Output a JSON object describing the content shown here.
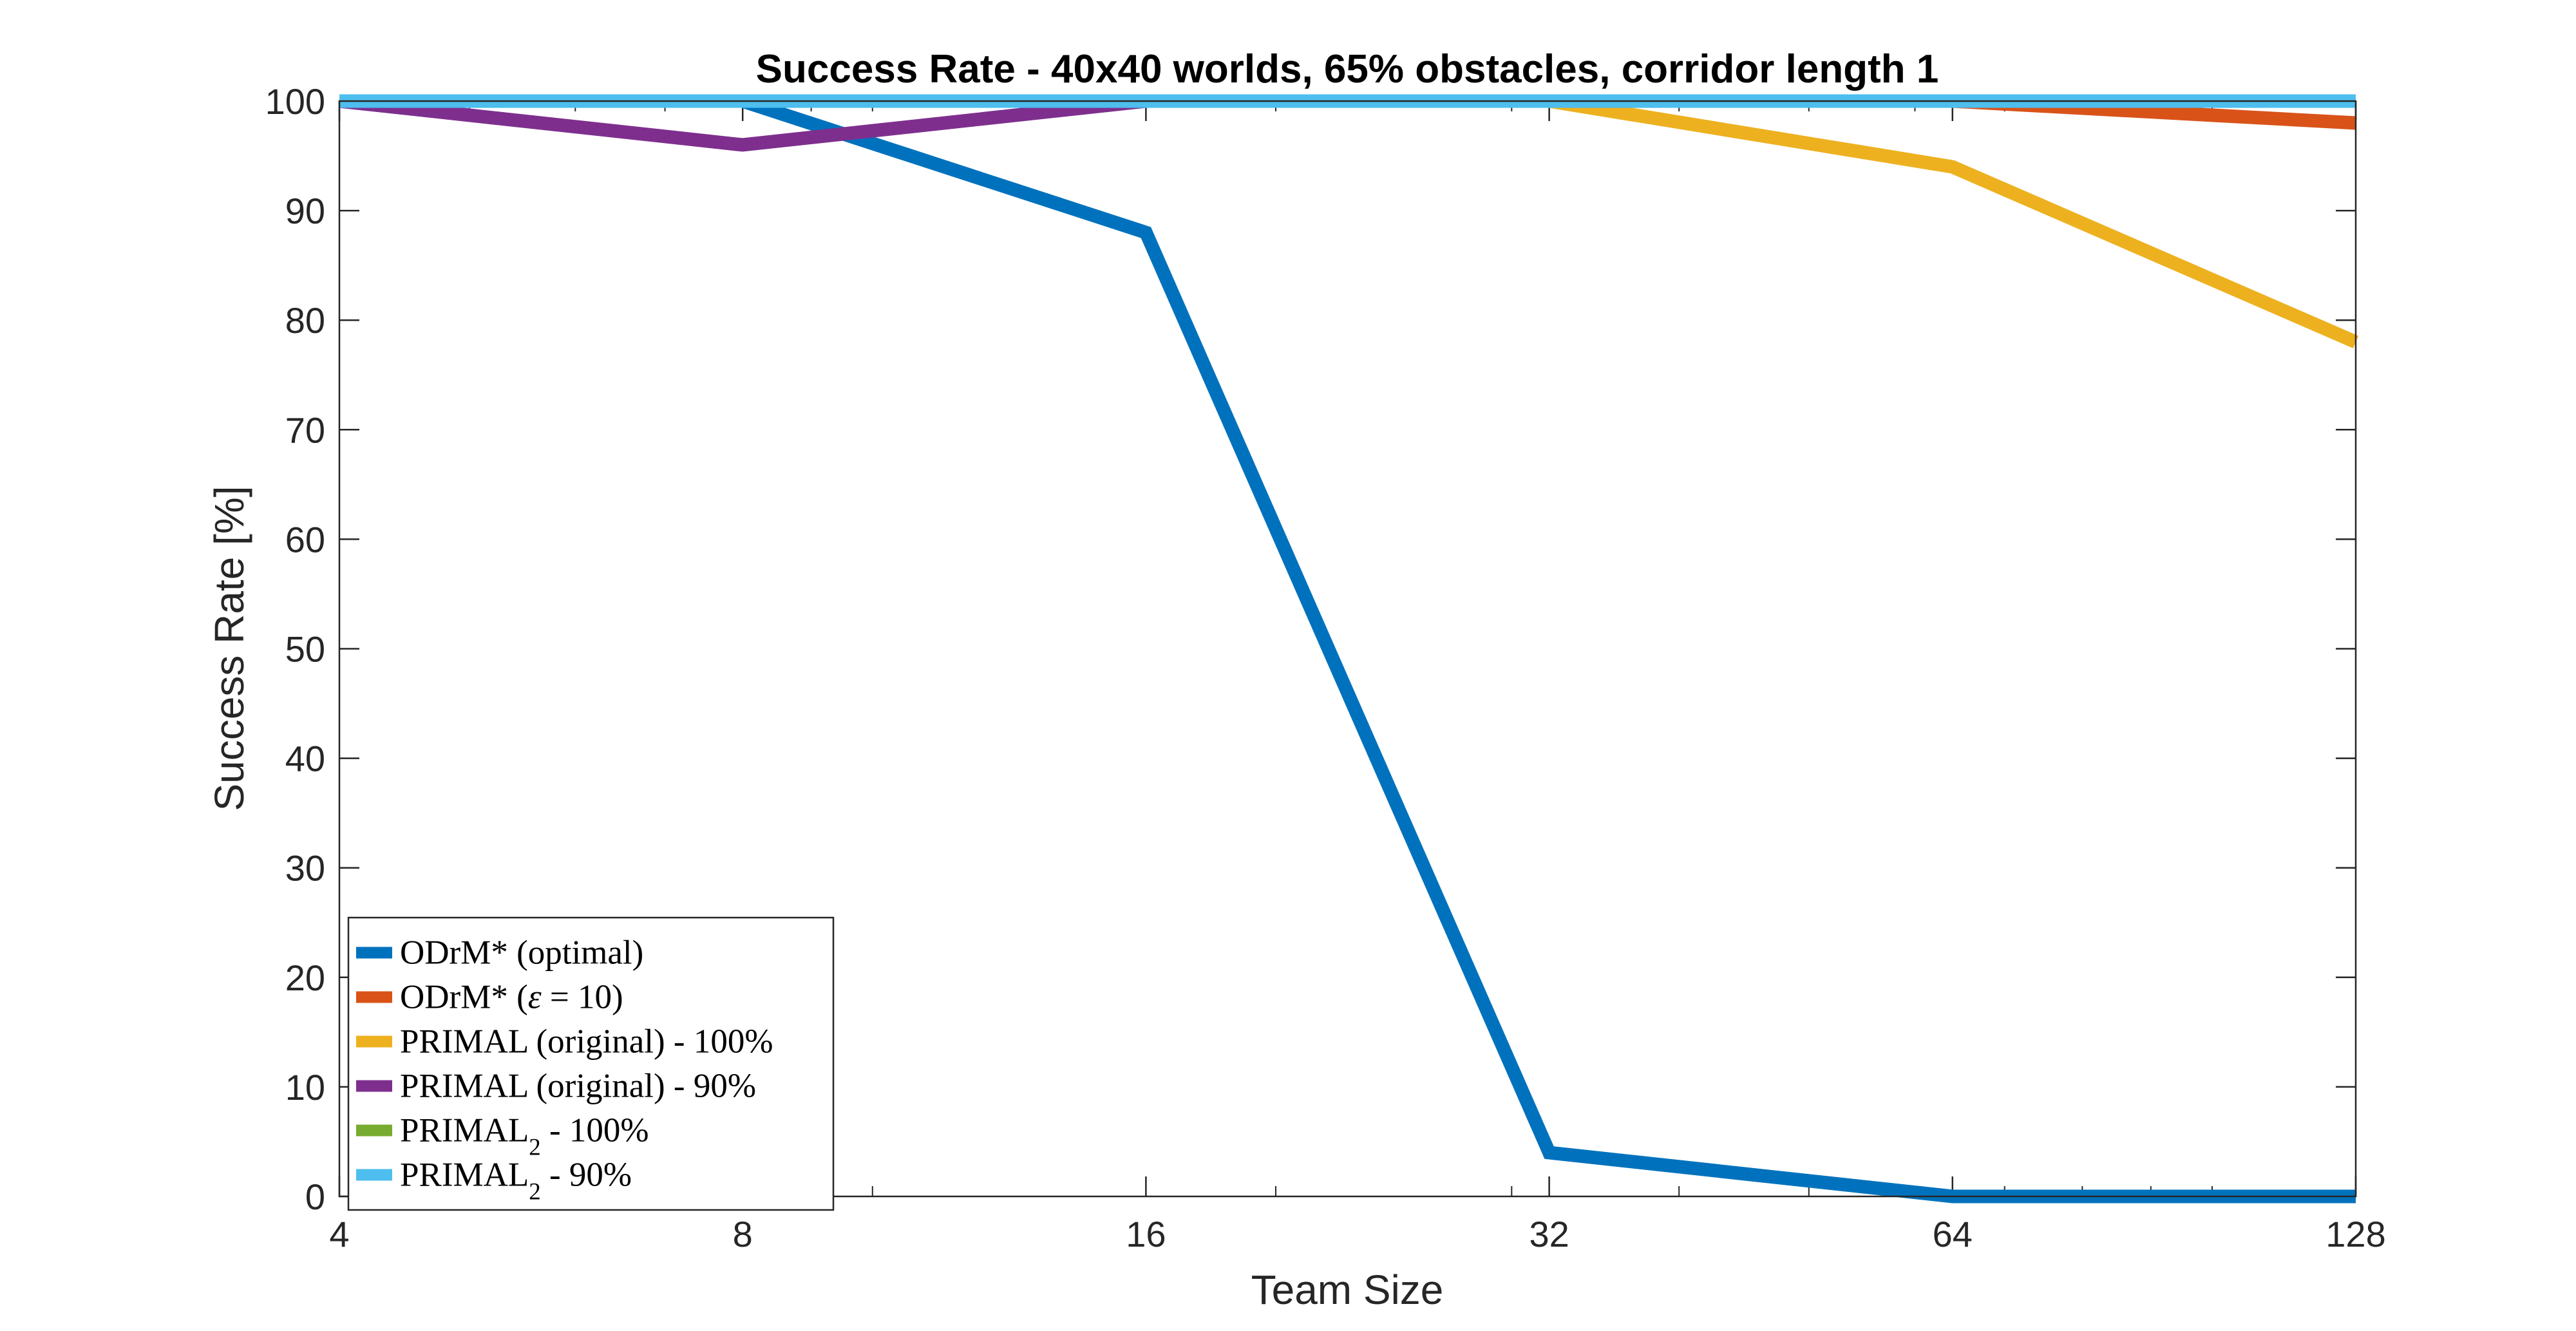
{
  "chart_data": {
    "type": "line",
    "title": "Success Rate - 40x40 worlds, 65% obstacles, corridor length 1",
    "xlabel": "Team Size",
    "ylabel": "Success Rate [%]",
    "x_scale": "log2",
    "x": [
      4,
      8,
      16,
      32,
      64,
      128
    ],
    "x_tick_labels": [
      "4",
      "8",
      "16",
      "32",
      "64",
      "128"
    ],
    "ylim": [
      0,
      100
    ],
    "y_ticks": [
      0,
      10,
      20,
      30,
      40,
      50,
      60,
      70,
      80,
      90,
      100
    ],
    "grid": false,
    "legend_position": "bottom-left",
    "series": [
      {
        "name": "ODrM* (optimal)",
        "legend_parts": [
          {
            "t": "ODrM* (optimal)"
          }
        ],
        "color": "#0072BD",
        "values": [
          100,
          100,
          88,
          4,
          0,
          0
        ]
      },
      {
        "name": "ODrM* (ε = 10)",
        "legend_parts": [
          {
            "t": "ODrM* ("
          },
          {
            "t": "ε",
            "italic": true
          },
          {
            "t": " = 10)"
          }
        ],
        "color": "#D95319",
        "values": [
          100,
          100,
          100,
          100,
          100,
          98
        ]
      },
      {
        "name": "PRIMAL (original) - 100%",
        "legend_parts": [
          {
            "t": "PRIMAL (original) - 100%"
          }
        ],
        "color": "#EDB120",
        "values": [
          100,
          100,
          100,
          100,
          94,
          78
        ]
      },
      {
        "name": "PRIMAL (original) - 90%",
        "legend_parts": [
          {
            "t": "PRIMAL (original) - 90%"
          }
        ],
        "color": "#7E2F8E",
        "values": [
          100,
          96,
          100,
          100,
          100,
          100
        ]
      },
      {
        "name": "PRIMAL2 - 100%",
        "legend_parts": [
          {
            "t": "PRIMAL"
          },
          {
            "t": "2",
            "sub": true
          },
          {
            "t": " - 100%"
          }
        ],
        "color": "#77AC30",
        "values": [
          100,
          100,
          100,
          100,
          100,
          100
        ]
      },
      {
        "name": "PRIMAL2 - 90%",
        "legend_parts": [
          {
            "t": "PRIMAL"
          },
          {
            "t": "2",
            "sub": true
          },
          {
            "t": " - 90%"
          }
        ],
        "color": "#4DBEEE",
        "values": [
          100,
          100,
          100,
          100,
          100,
          100
        ]
      }
    ]
  }
}
